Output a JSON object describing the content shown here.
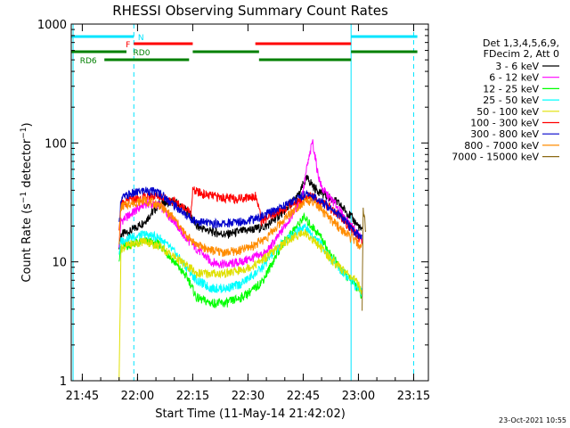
{
  "chart_data": {
    "type": "line",
    "title": "RHESSI Observing Summary Count Rates",
    "xlabel": "Start Time (11-May-14 21:42:02)",
    "ylabel_main": "Count Rate (s",
    "ylabel_exp1": "−1",
    "ylabel_mid": " detector",
    "ylabel_exp2": "−1",
    "ylabel_end": ")",
    "timestamp": "23-Oct-2021 10:55",
    "x_unit": "minutes since 21:42:02",
    "xlim": [
      0,
      97
    ],
    "ylim": [
      1,
      1000
    ],
    "yscale": "log",
    "x_ticks": [
      {
        "t": 3,
        "label": "21:45"
      },
      {
        "t": 18,
        "label": "22:00"
      },
      {
        "t": 33,
        "label": "22:15"
      },
      {
        "t": 48,
        "label": "22:30"
      },
      {
        "t": 63,
        "label": "22:45"
      },
      {
        "t": 78,
        "label": "23:00"
      },
      {
        "t": 93,
        "label": "23:15"
      }
    ],
    "y_ticks": [
      {
        "v": 1,
        "label": "1"
      },
      {
        "v": 10,
        "label": "10"
      },
      {
        "v": 100,
        "label": "100"
      },
      {
        "v": 1000,
        "label": "1000"
      }
    ],
    "legend": {
      "header": [
        "Det 1,3,4,5,6,9,",
        "FDecim 2, Att 0"
      ],
      "entries": [
        {
          "label": "3 - 6 keV",
          "color": "#000000"
        },
        {
          "label": "6 - 12 keV",
          "color": "#ff00ff"
        },
        {
          "label": "12 - 25 keV",
          "color": "#00ff00"
        },
        {
          "label": "25 - 50 keV",
          "color": "#00ffff"
        },
        {
          "label": "50 - 100 keV",
          "color": "#e0e000"
        },
        {
          "label": "100 - 300 keV",
          "color": "#ff0000"
        },
        {
          "label": "300 - 800 keV",
          "color": "#0000cc"
        },
        {
          "label": "800 - 7000 keV",
          "color": "#ff8c00"
        },
        {
          "label": "7000 - 15000 keV",
          "color": "#8b6914"
        }
      ]
    },
    "flags": [
      {
        "label": "N",
        "color": "#00e5ff",
        "intervals": [
          [
            0,
            17
          ],
          [
            76,
            94
          ]
        ]
      },
      {
        "label": "F",
        "color": "#ff0000",
        "intervals": [
          [
            17,
            33
          ],
          [
            50,
            76
          ]
        ]
      },
      {
        "label": "RD0",
        "color": "#008000",
        "intervals": [
          [
            0,
            15
          ],
          [
            33,
            51
          ],
          [
            76,
            94
          ]
        ]
      },
      {
        "label": "RD6",
        "color": "#008000",
        "intervals": [
          [
            9,
            32
          ],
          [
            51,
            76
          ]
        ]
      }
    ],
    "vlines": [
      {
        "t": 0.5,
        "style": "solid"
      },
      {
        "t": 17,
        "style": "dashed"
      },
      {
        "t": 76,
        "style": "solid"
      },
      {
        "t": 93,
        "style": "dashed"
      }
    ],
    "series": [
      {
        "name": "3 - 6 keV",
        "color": "#000000",
        "x": [
          13,
          13.5,
          16,
          20,
          24,
          28,
          32,
          34,
          38,
          42,
          46,
          50,
          53,
          56,
          58,
          60,
          62,
          63,
          64,
          65,
          66,
          68,
          70,
          72,
          74,
          76,
          78,
          79
        ],
        "y": [
          14,
          17,
          18,
          22,
          31,
          32,
          26,
          20,
          18,
          17,
          18,
          19,
          20,
          24,
          27,
          32,
          37,
          45,
          50,
          47,
          42,
          38,
          35,
          32,
          28,
          24,
          20,
          18
        ]
      },
      {
        "name": "6 - 12 keV",
        "color": "#ff00ff",
        "x": [
          13,
          13.5,
          16,
          20,
          24,
          28,
          31,
          34,
          38,
          42,
          46,
          50,
          53,
          56,
          58,
          60,
          62,
          63,
          64,
          65,
          65.5,
          66,
          67,
          68,
          70,
          72,
          74,
          76,
          78,
          79
        ],
        "y": [
          14,
          22,
          25,
          31,
          30,
          22,
          16,
          13,
          10,
          9.5,
          10,
          11,
          12,
          16,
          20,
          25,
          32,
          40,
          62,
          85,
          105,
          85,
          55,
          42,
          35,
          30,
          24,
          20,
          17,
          15
        ]
      },
      {
        "name": "12 - 25 keV",
        "color": "#00ff00",
        "x": [
          13,
          13.5,
          16,
          20,
          24,
          28,
          32,
          34,
          38,
          42,
          46,
          50,
          52,
          54,
          56,
          58,
          60,
          62,
          63,
          64,
          66,
          68,
          70,
          72,
          74,
          76,
          78,
          79
        ],
        "y": [
          11,
          13,
          14,
          15,
          14,
          10,
          7,
          5,
          4.5,
          4.5,
          5,
          6,
          7,
          9,
          12,
          15,
          18,
          21,
          24,
          22,
          19,
          16,
          12,
          10,
          8,
          7,
          6,
          5
        ]
      },
      {
        "name": "25 - 50 keV",
        "color": "#00ffff",
        "x": [
          13,
          13.5,
          16,
          20,
          24,
          28,
          32,
          34,
          38,
          42,
          46,
          50,
          52,
          54,
          56,
          58,
          60,
          62,
          63,
          64,
          66,
          68,
          70,
          72,
          74,
          76,
          78,
          79
        ],
        "y": [
          12,
          15,
          16,
          17,
          16,
          12,
          8.5,
          7,
          6,
          6,
          6.5,
          8,
          9,
          11,
          13,
          15,
          17,
          19,
          20,
          19,
          16,
          14,
          11,
          9.5,
          8,
          7,
          6,
          5.5
        ]
      },
      {
        "name": "50 - 100 keV",
        "color": "#e0e000",
        "x": [
          13,
          13.5,
          16,
          20,
          24,
          28,
          32,
          34,
          38,
          42,
          46,
          50,
          53,
          56,
          58,
          60,
          62,
          63,
          64,
          66,
          68,
          70,
          72,
          74,
          76,
          78,
          79
        ],
        "y": [
          1,
          13,
          14,
          15,
          13.5,
          11,
          9,
          8,
          8,
          8,
          8.5,
          9.5,
          11,
          13,
          14.5,
          16,
          17,
          18,
          17,
          15,
          13,
          11,
          9.5,
          8.5,
          7.5,
          6.5,
          5.5
        ]
      },
      {
        "name": "100 - 300 keV",
        "color": "#ff0000",
        "x": [
          13,
          13.5,
          16,
          20,
          24,
          28,
          31,
          32.5,
          33,
          36,
          40,
          44,
          48,
          50,
          51,
          51.5,
          54,
          57,
          60,
          63,
          65,
          67,
          70,
          73,
          76,
          78,
          79
        ],
        "y": [
          20,
          30,
          33,
          35,
          36,
          32,
          28,
          26,
          40,
          37,
          35,
          34,
          35,
          36,
          29,
          22,
          24,
          27,
          31,
          34,
          36,
          33,
          29,
          24,
          19,
          16,
          15
        ]
      },
      {
        "name": "300 - 800 keV",
        "color": "#0000cc",
        "x": [
          13,
          13.5,
          16,
          20,
          24,
          28,
          31,
          34,
          38,
          42,
          46,
          50,
          53,
          56,
          59,
          62,
          64,
          66,
          68,
          71,
          74,
          76,
          78,
          79
        ],
        "y": [
          20,
          34,
          37,
          40,
          38,
          30,
          25,
          22,
          21,
          21,
          22,
          23,
          25,
          28,
          31,
          35,
          37,
          35,
          32,
          28,
          23,
          19,
          17,
          16
        ]
      },
      {
        "name": "800 - 7000 keV",
        "color": "#ff8c00",
        "x": [
          13,
          13.5,
          16,
          20,
          24,
          28,
          31,
          34,
          38,
          42,
          46,
          50,
          53,
          56,
          59,
          62,
          64,
          66,
          68,
          71,
          74,
          76,
          78,
          79
        ],
        "y": [
          15,
          29,
          31,
          33,
          30,
          23,
          17,
          14,
          12.5,
          12,
          12.5,
          14,
          16,
          20,
          25,
          30,
          33,
          31,
          27,
          22,
          18,
          16,
          14,
          13
        ]
      },
      {
        "name": "7000 - 15000 keV",
        "color": "#8b6914",
        "x": [
          79,
          79.3,
          80
        ],
        "y": [
          4,
          30,
          18
        ]
      }
    ]
  }
}
